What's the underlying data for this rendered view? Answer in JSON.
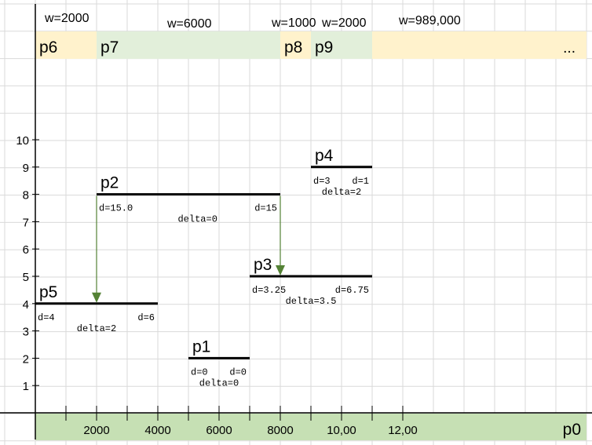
{
  "colors": {
    "background": "#ffffff",
    "gridline": "#dadada",
    "axis": "#000000",
    "orange_band": "#fff2cc",
    "green_band": "#e2efda",
    "axis_band": "#c6e0b4",
    "bar": "#000000",
    "arrow": "#548235"
  },
  "chart_data": {
    "type": "diagram",
    "y_axis_ticks": [
      "1",
      "2",
      "3",
      "4",
      "5",
      "6",
      "7",
      "8",
      "9",
      "10"
    ],
    "x_axis_tick_labels": [
      "2000",
      "4000",
      "6000",
      "8000",
      "10,00",
      "12,00"
    ],
    "axis_label": "p0",
    "top_partitions": [
      {
        "name": "p6",
        "w_label": "w=2000",
        "color": "orange",
        "start": 0,
        "end": 2000
      },
      {
        "name": "p7",
        "w_label": "w=6000",
        "color": "green",
        "start": 2000,
        "end": 8000
      },
      {
        "name": "p8",
        "w_label": "w=1000",
        "color": "orange",
        "start": 8000,
        "end": 9000
      },
      {
        "name": "p9",
        "w_label": "w=2000",
        "color": "green",
        "start": 9000,
        "end": 11000
      },
      {
        "name": "...",
        "w_label": "w=989,000",
        "color": "orange",
        "start": 11000,
        "end": 18000
      }
    ],
    "segments": [
      {
        "name": "p1",
        "start": 5000,
        "end": 7000,
        "level": 2,
        "d_left": "d=0",
        "d_right": "d=0",
        "delta": "delta=0"
      },
      {
        "name": "p2",
        "start": 2000,
        "end": 8000,
        "level": 8,
        "d_left": "d=15.0",
        "d_right": "d=15",
        "delta": "delta=0"
      },
      {
        "name": "p3",
        "start": 7000,
        "end": 11000,
        "level": 5,
        "d_left": "d=3.25",
        "d_right": "d=6.75",
        "delta": "delta=3.5"
      },
      {
        "name": "p4",
        "start": 9000,
        "end": 11000,
        "level": 9,
        "d_left": "d=3",
        "d_right": "d=1",
        "delta": "delta=2"
      },
      {
        "name": "p5",
        "start": 0,
        "end": 4000,
        "level": 4,
        "d_left": "d=4",
        "d_right": "d=6",
        "delta": "delta=2"
      }
    ],
    "arrows": [
      {
        "from": "p2",
        "to": "p5",
        "x": 2000
      },
      {
        "from": "p2",
        "to": "p3",
        "x": 8000
      }
    ]
  }
}
